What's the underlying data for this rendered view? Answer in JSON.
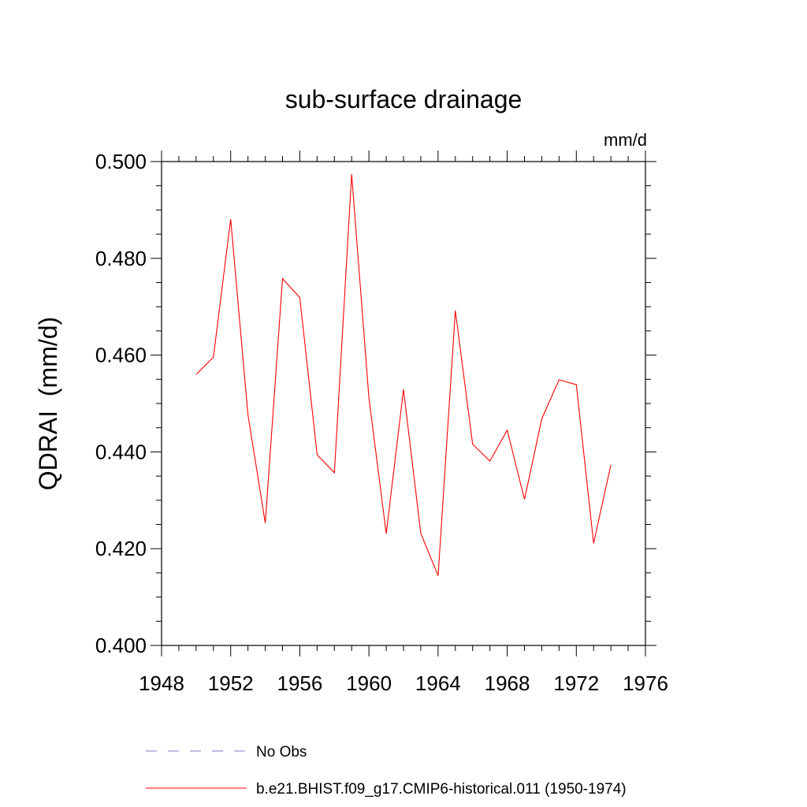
{
  "chart_data": {
    "type": "line",
    "title": "sub-surface drainage",
    "units": "mm/d",
    "ylabel": "QDRAI  (mm/d)",
    "xlabel": "",
    "xlim": [
      1948,
      1976
    ],
    "ylim": [
      0.4,
      0.5
    ],
    "x_ticks": [
      "1948",
      "1952",
      "1956",
      "1960",
      "1964",
      "1968",
      "1972",
      "1976"
    ],
    "y_ticks": [
      "0.400",
      "0.420",
      "0.440",
      "0.460",
      "0.480",
      "0.500"
    ],
    "series": [
      {
        "name": "b.e21.BHIST.f09_g17.CMIP6-historical.011 (1950-1974)",
        "color": "#ff0000",
        "x": [
          1950,
          1951,
          1952,
          1953,
          1954,
          1955,
          1956,
          1957,
          1958,
          1959,
          1960,
          1961,
          1962,
          1963,
          1964,
          1965,
          1966,
          1967,
          1968,
          1969,
          1970,
          1971,
          1972,
          1973,
          1974
        ],
        "y": [
          0.456,
          0.4596,
          0.4881,
          0.4477,
          0.4253,
          0.4758,
          0.4719,
          0.4394,
          0.4357,
          0.4974,
          0.4512,
          0.4231,
          0.4529,
          0.4232,
          0.4144,
          0.4692,
          0.4416,
          0.4381,
          0.4445,
          0.4302,
          0.4468,
          0.4549,
          0.4539,
          0.4211,
          0.4373
        ]
      }
    ],
    "legend": [
      {
        "label": "No Obs",
        "color": "#7d7dc8",
        "style": "dashed"
      },
      {
        "label": "b.e21.BHIST.f09_g17.CMIP6-historical.011 (1950-1974)",
        "color": "#ff0000",
        "style": "solid"
      }
    ],
    "grid": false,
    "legend_position": "bottom"
  }
}
